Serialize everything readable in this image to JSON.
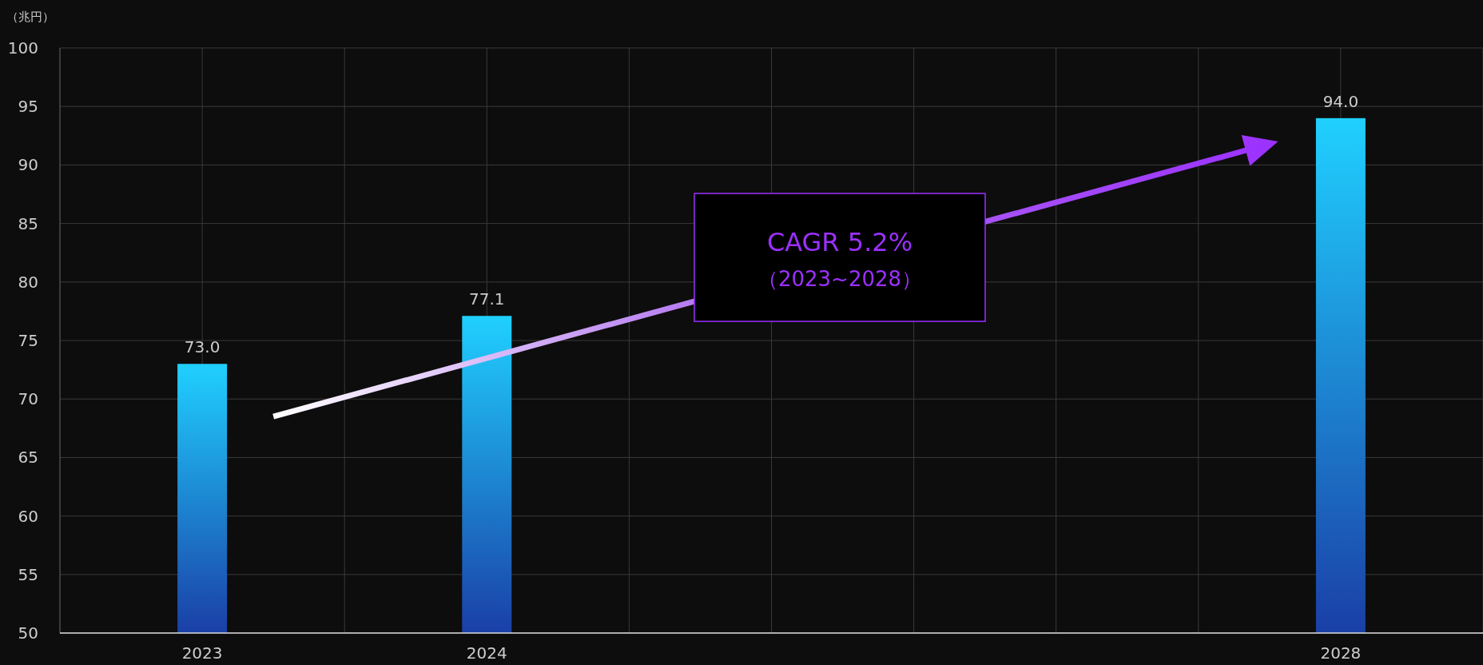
{
  "chart_data": {
    "type": "bar",
    "ylabel": "（兆円）",
    "categories": [
      "2023",
      "2024",
      null,
      null,
      "2028"
    ],
    "values": [
      73.0,
      77.1,
      null,
      null,
      94.0
    ],
    "value_labels": [
      "73.0",
      "77.1",
      null,
      null,
      "94.0"
    ],
    "color": "#20d0ff",
    "ylim": [
      50,
      100
    ],
    "yticks": [
      50,
      55,
      60,
      65,
      70,
      75,
      80,
      85,
      90,
      95,
      100
    ],
    "grid": true,
    "annotations": [
      "CAGR 5.2%",
      "（2023~2028）"
    ]
  }
}
